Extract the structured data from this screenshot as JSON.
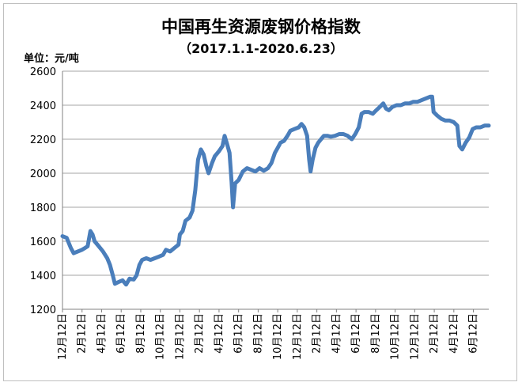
{
  "chart_data": {
    "type": "line",
    "title": "中国再生资源废钢价格指数",
    "subtitle": "（2017.1.1-2020.6.23）",
    "ylabel": "单位：元/吨",
    "xlabel": "",
    "ylim": [
      1200,
      2600
    ],
    "yticks": [
      1200,
      1400,
      1600,
      1800,
      2000,
      2200,
      2400,
      2600
    ],
    "xticks": [
      "12月12日",
      "2月12日",
      "4月12日",
      "6月12日",
      "8月12日",
      "10月12日",
      "12月12日",
      "2月12日",
      "4月12日",
      "6月12日",
      "8月12日",
      "10月12日",
      "12月12日",
      "2月12日",
      "4月12日",
      "6月12日",
      "8月12日",
      "10月12日",
      "12月12日",
      "2月12日",
      "4月12日",
      "6月12日"
    ],
    "grid": "horizontal",
    "legend": "none",
    "color": "#4a7ebb",
    "series": [
      {
        "values": [
          [
            0.0,
            1630
          ],
          [
            0.3,
            1620
          ],
          [
            0.6,
            1560
          ],
          [
            0.8,
            1530
          ],
          [
            1.1,
            1540
          ],
          [
            1.4,
            1550
          ],
          [
            1.6,
            1560
          ],
          [
            1.8,
            1570
          ],
          [
            2.0,
            1660
          ],
          [
            2.15,
            1640
          ],
          [
            2.3,
            1600
          ],
          [
            2.6,
            1570
          ],
          [
            2.9,
            1540
          ],
          [
            3.2,
            1500
          ],
          [
            3.4,
            1460
          ],
          [
            3.6,
            1400
          ],
          [
            3.75,
            1350
          ],
          [
            4.0,
            1360
          ],
          [
            4.3,
            1370
          ],
          [
            4.55,
            1345
          ],
          [
            4.8,
            1380
          ],
          [
            5.1,
            1375
          ],
          [
            5.3,
            1400
          ],
          [
            5.5,
            1460
          ],
          [
            5.7,
            1490
          ],
          [
            6.0,
            1500
          ],
          [
            6.3,
            1490
          ],
          [
            6.6,
            1500
          ],
          [
            6.9,
            1510
          ],
          [
            7.2,
            1520
          ],
          [
            7.4,
            1550
          ],
          [
            7.7,
            1540
          ],
          [
            8.0,
            1560
          ],
          [
            8.3,
            1580
          ],
          [
            8.4,
            1640
          ],
          [
            8.6,
            1660
          ],
          [
            8.8,
            1720
          ],
          [
            9.1,
            1740
          ],
          [
            9.3,
            1780
          ],
          [
            9.5,
            1900
          ],
          [
            9.7,
            2080
          ],
          [
            9.9,
            2140
          ],
          [
            10.1,
            2110
          ],
          [
            10.3,
            2040
          ],
          [
            10.45,
            2000
          ],
          [
            10.7,
            2060
          ],
          [
            10.9,
            2100
          ],
          [
            11.2,
            2130
          ],
          [
            11.45,
            2160
          ],
          [
            11.6,
            2220
          ],
          [
            11.75,
            2180
          ],
          [
            11.95,
            2120
          ],
          [
            12.1,
            1950
          ],
          [
            12.2,
            1800
          ],
          [
            12.35,
            1940
          ],
          [
            12.6,
            1960
          ],
          [
            12.9,
            2010
          ],
          [
            13.2,
            2030
          ],
          [
            13.5,
            2020
          ],
          [
            13.8,
            2010
          ],
          [
            14.1,
            2030
          ],
          [
            14.4,
            2015
          ],
          [
            14.7,
            2030
          ],
          [
            14.95,
            2060
          ],
          [
            15.2,
            2120
          ],
          [
            15.4,
            2150
          ],
          [
            15.6,
            2180
          ],
          [
            15.85,
            2190
          ],
          [
            16.1,
            2220
          ],
          [
            16.3,
            2250
          ],
          [
            16.6,
            2260
          ],
          [
            16.9,
            2270
          ],
          [
            17.1,
            2290
          ],
          [
            17.3,
            2270
          ],
          [
            17.5,
            2220
          ],
          [
            17.65,
            2080
          ],
          [
            17.75,
            2010
          ],
          [
            17.9,
            2080
          ],
          [
            18.1,
            2150
          ],
          [
            18.3,
            2180
          ],
          [
            18.5,
            2200
          ],
          [
            18.7,
            2220
          ],
          [
            18.95,
            2220
          ],
          [
            19.2,
            2215
          ],
          [
            19.5,
            2220
          ],
          [
            19.8,
            2230
          ],
          [
            20.1,
            2230
          ],
          [
            20.4,
            2220
          ],
          [
            20.7,
            2200
          ],
          [
            20.95,
            2230
          ],
          [
            21.2,
            2270
          ],
          [
            21.4,
            2350
          ],
          [
            21.6,
            2360
          ],
          [
            21.9,
            2360
          ],
          [
            22.2,
            2350
          ],
          [
            22.45,
            2370
          ],
          [
            22.7,
            2390
          ],
          [
            22.95,
            2410
          ],
          [
            23.15,
            2380
          ],
          [
            23.35,
            2370
          ],
          [
            23.6,
            2390
          ],
          [
            23.9,
            2400
          ],
          [
            24.2,
            2400
          ],
          [
            24.5,
            2410
          ],
          [
            24.8,
            2410
          ],
          [
            25.1,
            2420
          ],
          [
            25.4,
            2420
          ],
          [
            25.7,
            2430
          ],
          [
            26.0,
            2440
          ],
          [
            26.3,
            2450
          ],
          [
            26.45,
            2450
          ],
          [
            26.55,
            2360
          ],
          [
            26.8,
            2340
          ],
          [
            27.1,
            2320
          ],
          [
            27.4,
            2310
          ],
          [
            27.7,
            2310
          ],
          [
            28.0,
            2300
          ],
          [
            28.25,
            2280
          ],
          [
            28.4,
            2160
          ],
          [
            28.6,
            2140
          ],
          [
            28.85,
            2180
          ],
          [
            29.1,
            2210
          ],
          [
            29.35,
            2260
          ],
          [
            29.6,
            2270
          ],
          [
            29.9,
            2270
          ],
          [
            30.2,
            2280
          ],
          [
            30.5,
            2280
          ]
        ]
      }
    ]
  }
}
